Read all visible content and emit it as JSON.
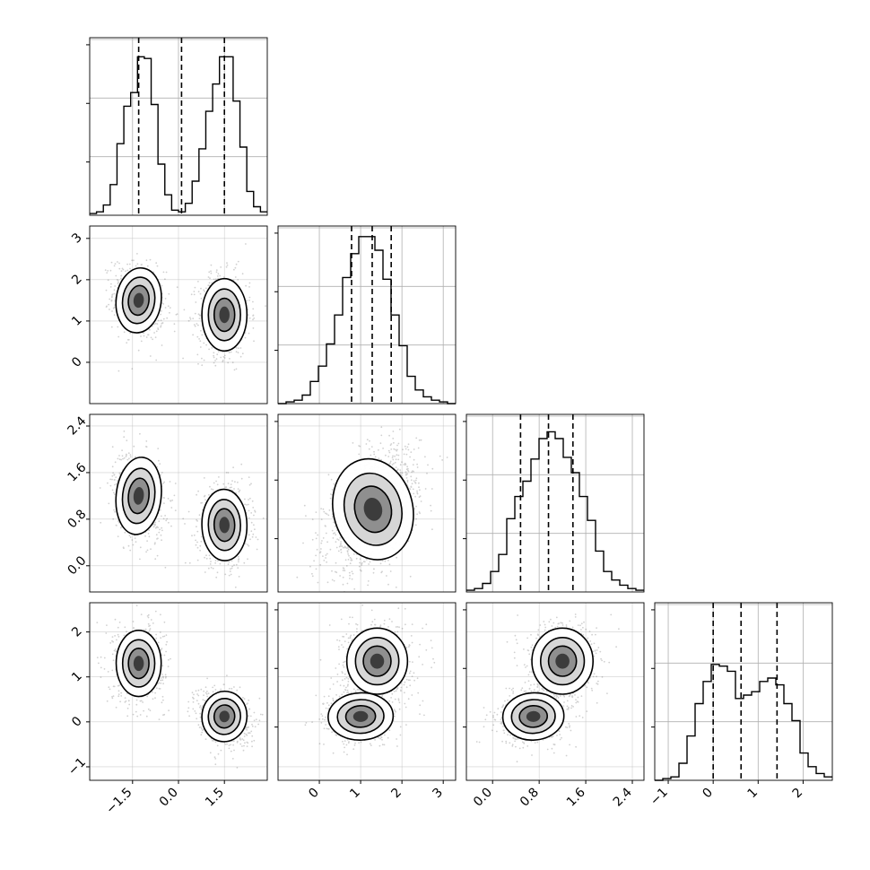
{
  "chart_data": {
    "type": "corner",
    "colors": {
      "line": "#000000",
      "grid": "#b0b0b0",
      "points": "#000000"
    },
    "grid": true,
    "parameters": [
      {
        "index": 0,
        "range": [
          -2.9,
          2.9
        ],
        "ticks": [
          -1.5,
          0.0,
          1.5
        ],
        "tick_labels": [
          "−1.5",
          "0.0",
          "1.5"
        ],
        "quantiles": [
          -1.3,
          0.1,
          1.5
        ]
      },
      {
        "index": 1,
        "range": [
          -1.0,
          3.3
        ],
        "ticks": [
          0,
          1,
          2,
          3
        ],
        "tick_labels": [
          "0",
          "1",
          "2",
          "3"
        ],
        "quantiles": [
          0.78,
          1.28,
          1.74
        ]
      },
      {
        "index": 2,
        "range": [
          -0.45,
          2.6
        ],
        "ticks": [
          0.0,
          0.8,
          1.6,
          2.4
        ],
        "tick_labels": [
          "0.0",
          "0.8",
          "1.6",
          "2.4"
        ],
        "quantiles": [
          0.48,
          0.96,
          1.38
        ]
      },
      {
        "index": 3,
        "range": [
          -1.3,
          2.65
        ],
        "ticks": [
          -1,
          0,
          1,
          2
        ],
        "tick_labels": [
          "−1",
          "0",
          "1",
          "2"
        ],
        "quantiles": [
          0.0,
          0.62,
          1.42
        ]
      }
    ],
    "histograms": [
      {
        "param": 0,
        "counts": [
          1,
          2,
          6,
          18,
          42,
          64,
          72,
          93,
          92,
          65,
          30,
          12,
          3,
          2,
          7,
          20,
          39,
          61,
          77,
          93,
          93,
          67,
          40,
          14,
          5,
          2
        ],
        "ylim": [
          0,
          100
        ]
      },
      {
        "param": 1,
        "counts": [
          0,
          1,
          2,
          5,
          13,
          22,
          35,
          52,
          74,
          88,
          98,
          98,
          90,
          73,
          52,
          34,
          16,
          8,
          4,
          2,
          1,
          0
        ],
        "ylim": [
          0,
          100
        ]
      },
      {
        "param": 2,
        "counts": [
          1,
          2,
          5,
          12,
          22,
          43,
          56,
          65,
          78,
          90,
          94,
          90,
          79,
          70,
          56,
          42,
          24,
          12,
          7,
          4,
          2,
          1
        ],
        "ylim": [
          0,
          100
        ]
      },
      {
        "param": 3,
        "counts": [
          0,
          1,
          2,
          10,
          26,
          45,
          58,
          68,
          67,
          64,
          48,
          50,
          52,
          58,
          60,
          56,
          45,
          35,
          16,
          8,
          4,
          2
        ],
        "ylim": [
          0,
          100
        ]
      }
    ],
    "scatter_panels": [
      {
        "x": 0,
        "y": 1,
        "clusters": [
          {
            "center": [
              -1.3,
              1.5
            ],
            "sd": [
              0.42,
              0.45
            ],
            "rho": -0.2,
            "weight": 0.5
          },
          {
            "center": [
              1.5,
              1.15
            ],
            "sd": [
              0.42,
              0.5
            ],
            "rho": 0.0,
            "weight": 0.5
          }
        ]
      },
      {
        "x": 0,
        "y": 2,
        "clusters": [
          {
            "center": [
              -1.3,
              1.2
            ],
            "sd": [
              0.42,
              0.38
            ],
            "rho": -0.2,
            "weight": 0.5
          },
          {
            "center": [
              1.5,
              0.7
            ],
            "sd": [
              0.42,
              0.35
            ],
            "rho": 0.05,
            "weight": 0.5
          }
        ]
      },
      {
        "x": 1,
        "y": 2,
        "clusters": [
          {
            "center": [
              1.3,
              0.97
            ],
            "sd": [
              0.55,
              0.5
            ],
            "rho": 0.45,
            "weight": 1.0
          }
        ]
      },
      {
        "x": 0,
        "y": 3,
        "clusters": [
          {
            "center": [
              -1.3,
              1.3
            ],
            "sd": [
              0.42,
              0.42
            ],
            "rho": 0.0,
            "weight": 0.5
          },
          {
            "center": [
              1.5,
              0.12
            ],
            "sd": [
              0.42,
              0.32
            ],
            "rho": -0.2,
            "weight": 0.5
          }
        ]
      },
      {
        "x": 1,
        "y": 3,
        "clusters": [
          {
            "center": [
              1.0,
              0.12
            ],
            "sd": [
              0.45,
              0.3
            ],
            "rho": 0.1,
            "weight": 0.5
          },
          {
            "center": [
              1.4,
              1.35
            ],
            "sd": [
              0.42,
              0.42
            ],
            "rho": 0.0,
            "weight": 0.5
          }
        ]
      },
      {
        "x": 2,
        "y": 3,
        "clusters": [
          {
            "center": [
              0.7,
              0.12
            ],
            "sd": [
              0.3,
              0.3
            ],
            "rho": 0.1,
            "weight": 0.5
          },
          {
            "center": [
              1.2,
              1.35
            ],
            "sd": [
              0.3,
              0.42
            ],
            "rho": 0.0,
            "weight": 0.5
          }
        ]
      }
    ],
    "contour_levels": [
      0.3,
      0.55,
      0.8
    ]
  }
}
